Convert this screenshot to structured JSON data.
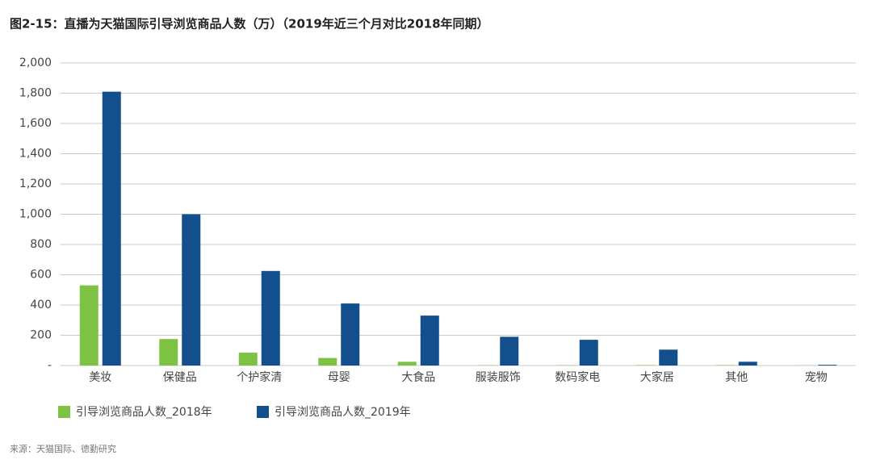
{
  "chart_data": {
    "type": "bar",
    "title": "图2-15：直播为天猫国际引导浏览商品人数（万）（2019年近三个月对比2018年同期）",
    "categories": [
      "美妆",
      "保健品",
      "个护家清",
      "母婴",
      "大食品",
      "服装服饰",
      "数码家电",
      "大家居",
      "其他",
      "宠物"
    ],
    "series": [
      {
        "name": "引导浏览商品人数_2018年",
        "color": "#7dc242",
        "values": [
          530,
          175,
          85,
          50,
          25,
          2,
          2,
          3,
          3,
          1
        ]
      },
      {
        "name": "引导浏览商品人数_2019年",
        "color": "#124f8c",
        "values": [
          1810,
          1000,
          625,
          410,
          330,
          190,
          170,
          105,
          25,
          5
        ]
      }
    ],
    "ylim": [
      0,
      2000
    ],
    "yticks": [
      {
        "value": 0,
        "label": "-"
      },
      200,
      400,
      600,
      800,
      {
        "value": 1000,
        "label": "1,000"
      },
      {
        "value": 1200,
        "label": "1,200"
      },
      {
        "value": 1400,
        "label": "1,400"
      },
      {
        "value": 1600,
        "label": "1,600"
      },
      {
        "value": 1800,
        "label": "1,800"
      },
      {
        "value": 2000,
        "label": "2,000"
      }
    ],
    "grid": true,
    "source": "来源：天猫国际、德勤研究"
  }
}
